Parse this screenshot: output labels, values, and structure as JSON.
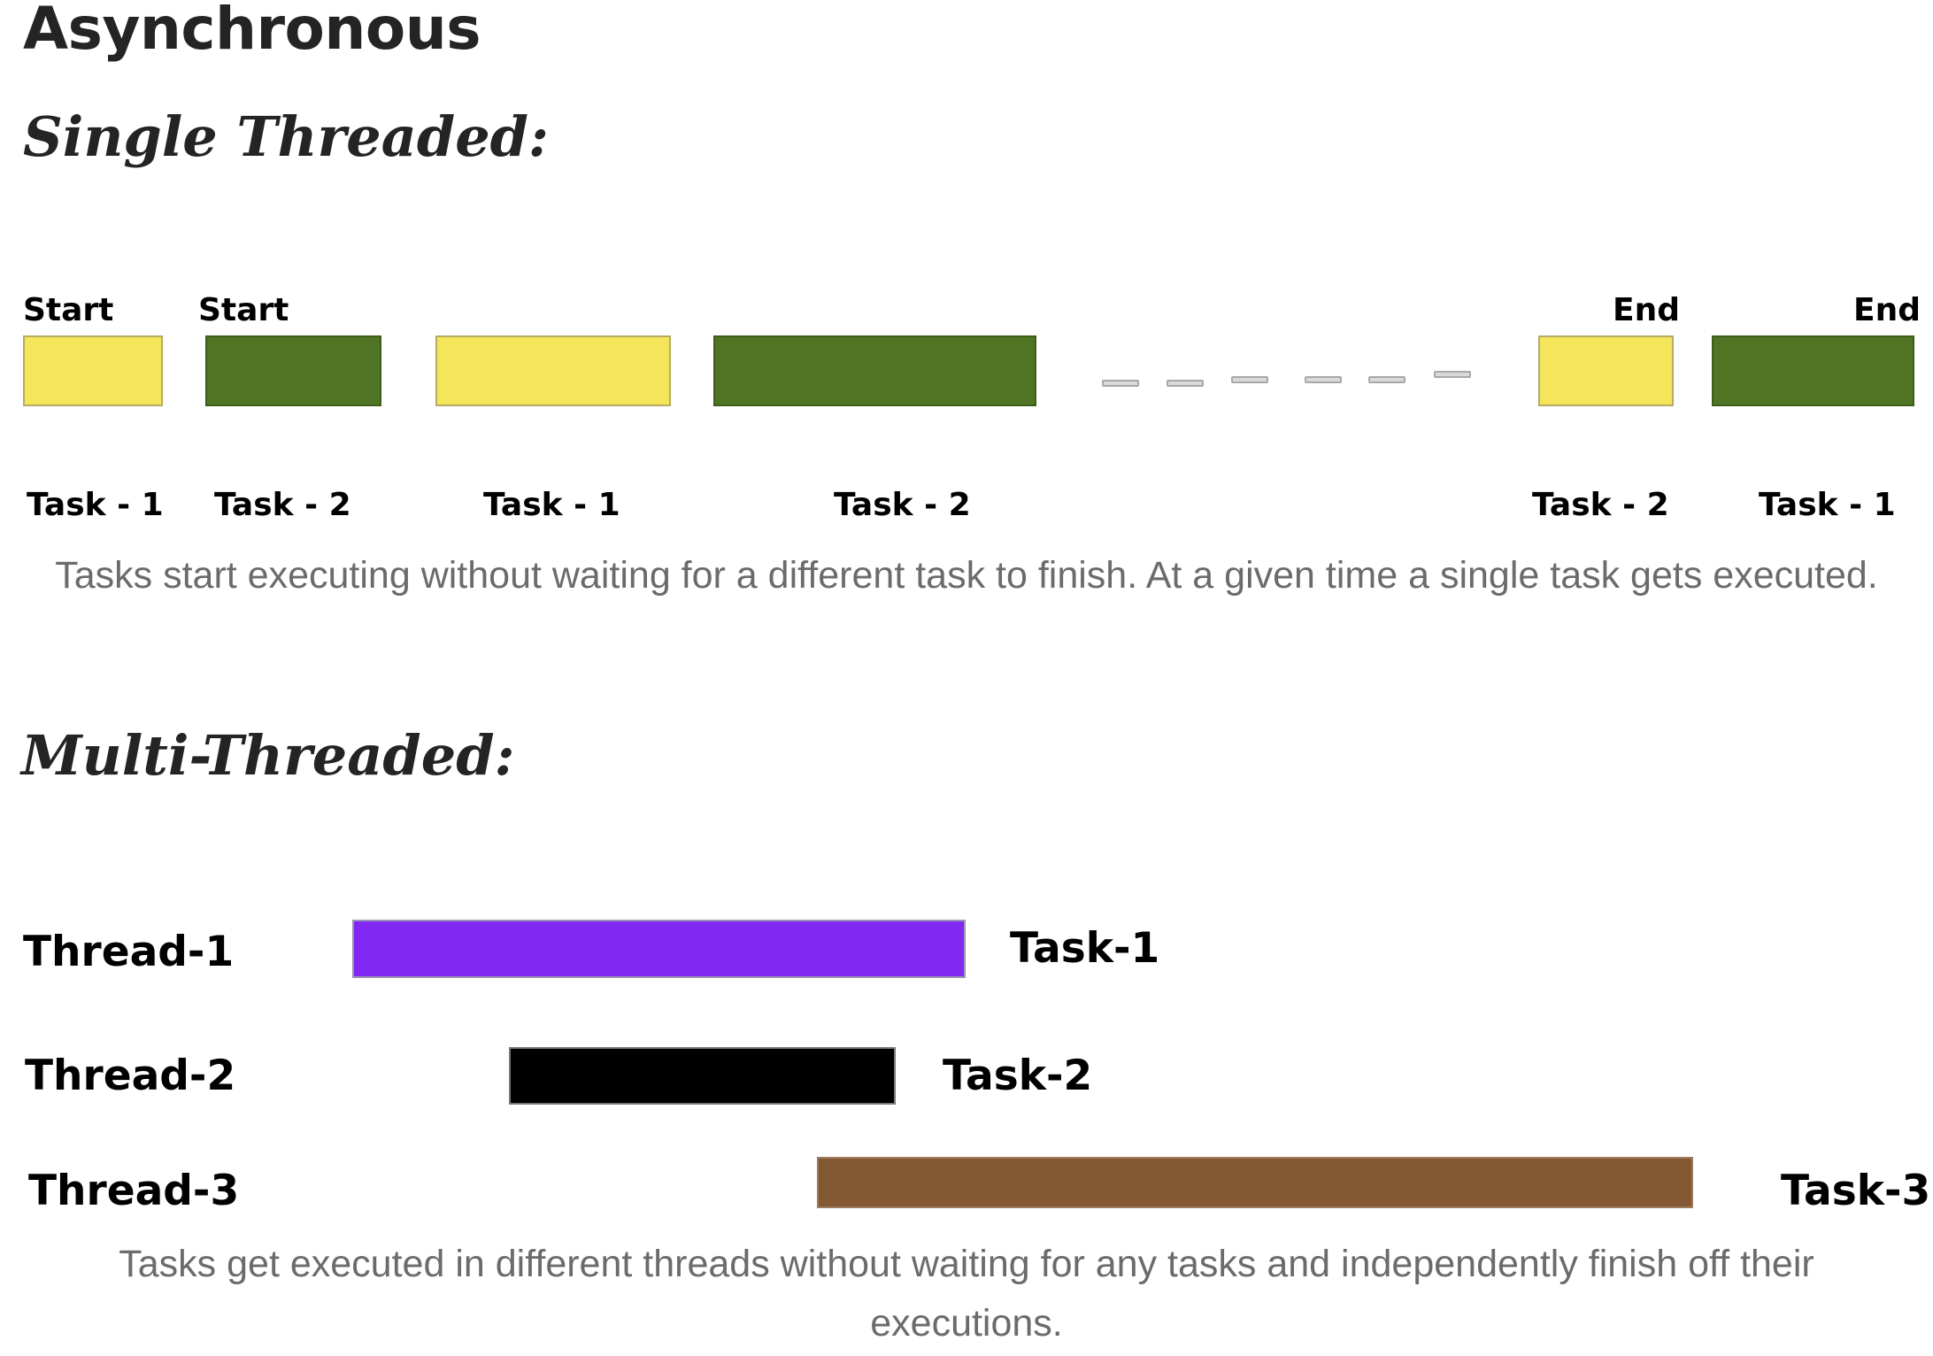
{
  "title": "Asynchronous",
  "single_threaded": {
    "heading": "Single Threaded:",
    "markers": {
      "start_1": "Start",
      "start_2": "Start",
      "end_1": "End",
      "end_2": "End"
    },
    "task_labels": [
      "Task - 1",
      "Task - 2",
      "Task - 1",
      "Task - 2",
      "Task - 2",
      "Task - 1"
    ],
    "caption": "Tasks start executing without waiting for a different task to finish. At a given time a single task gets executed.",
    "colors": {
      "task_1": "#f5e55a",
      "task_2": "#4f7524"
    }
  },
  "multi_threaded": {
    "heading": "Multi-Threaded:",
    "threads": [
      {
        "thread": "Thread-1",
        "task": "Task-1",
        "color": "#8128f3"
      },
      {
        "thread": "Thread-2",
        "task": "Task-2",
        "color": "#000000"
      },
      {
        "thread": "Thread-3",
        "task": "Task-3",
        "color": "#845833"
      }
    ],
    "caption": "Tasks get executed in different threads without waiting for any tasks and independently finish off their executions."
  }
}
